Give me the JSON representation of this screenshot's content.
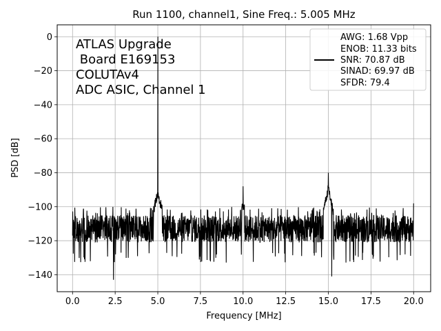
{
  "chart_data": {
    "type": "line",
    "title": "Run 1100, channel1, Sine Freq.: 5.005 MHz",
    "xlabel": "Frequency [MHz]",
    "ylabel": "PSD [dB]",
    "xlim": [
      -0.9,
      21.0
    ],
    "ylim": [
      -150,
      7
    ],
    "xticks": [
      0.0,
      2.5,
      5.0,
      7.5,
      10.0,
      12.5,
      15.0,
      17.5,
      20.0
    ],
    "xtick_labels": [
      "0.0",
      "2.5",
      "5.0",
      "7.5",
      "10.0",
      "12.5",
      "15.0",
      "17.5",
      "20.0"
    ],
    "yticks": [
      0,
      -20,
      -40,
      -60,
      -80,
      -100,
      -120,
      -140
    ],
    "ytick_labels": [
      "0",
      "−20",
      "−40",
      "−60",
      "−80",
      "−100",
      "−120",
      "−140"
    ],
    "grid": true,
    "color": "#000000",
    "annotation": [
      "ATLAS Upgrade",
      " Board E169153",
      "COLUTAv4",
      "ADC ASIC, Channel 1"
    ],
    "legend": {
      "placement": "top-right",
      "entries": [
        "AWG: 1.68 Vpp",
        "ENOB: 11.33 bits",
        "SNR: 70.87 dB",
        "SINAD: 69.97 dB",
        "SFDR: 79.4"
      ]
    },
    "x_range": [
      0.0,
      20.0
    ],
    "noise_floor_db": -113,
    "noise_band_db": [
      -130,
      -100
    ],
    "peaks": [
      {
        "x": 5.005,
        "y": 0
      },
      {
        "x": 15.0,
        "y": -80
      },
      {
        "x": 10.0,
        "y": -88
      },
      {
        "x": 20.0,
        "y": -98
      },
      {
        "x": 2.4,
        "y": -143
      },
      {
        "x": 15.2,
        "y": -141
      }
    ]
  }
}
